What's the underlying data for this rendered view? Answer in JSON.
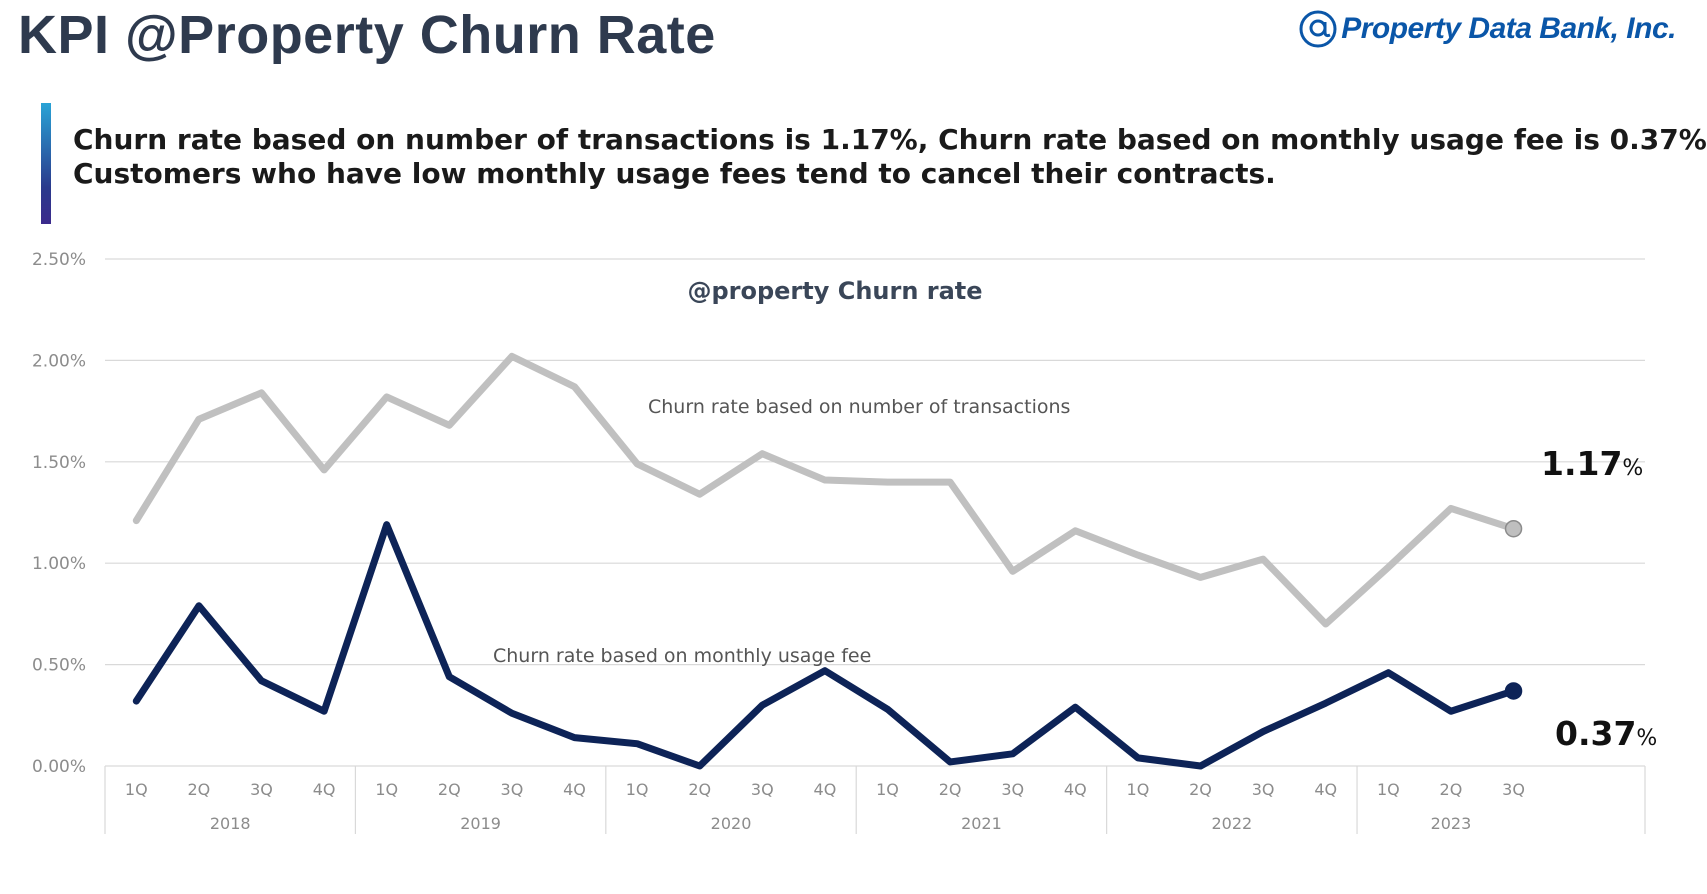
{
  "header": {
    "title": "KPI @Property Churn Rate",
    "logo_text": "Property Data Bank, Inc."
  },
  "summary": {
    "line1": "Churn rate based on number of transactions is 1.17%, Churn rate based on monthly usage fee is 0.37%",
    "line2": "Customers who have low monthly usage fees tend to cancel their contracts."
  },
  "colors": {
    "title": "#2e3a4e",
    "brand": "#0a56a8",
    "transactions_line": "#c0c0c0",
    "usage_fee_line": "#0d2357",
    "grid": "#d9d9d9",
    "axis_text": "#8c8c8c"
  },
  "chart_data": {
    "type": "line",
    "title": "@property Churn rate",
    "yticks": [
      "0.00%",
      "0.50%",
      "1.00%",
      "1.50%",
      "2.00%",
      "2.50%"
    ],
    "ylim": [
      0,
      2.5
    ],
    "grid": true,
    "x": [
      "1Q",
      "2Q",
      "3Q",
      "4Q",
      "1Q",
      "2Q",
      "3Q",
      "4Q",
      "1Q",
      "2Q",
      "3Q",
      "4Q",
      "1Q",
      "2Q",
      "3Q",
      "4Q",
      "1Q",
      "2Q",
      "3Q",
      "4Q",
      "1Q",
      "2Q",
      "3Q"
    ],
    "years": [
      "2018",
      "2019",
      "2020",
      "2021",
      "2022",
      "2023"
    ],
    "series": [
      {
        "name": "Churn rate based on number of transactions",
        "values": [
          1.21,
          1.71,
          1.84,
          1.46,
          1.82,
          1.68,
          2.02,
          1.87,
          1.49,
          1.34,
          1.54,
          1.41,
          1.4,
          1.4,
          0.96,
          1.16,
          1.04,
          0.93,
          1.02,
          0.7,
          0.98,
          1.27,
          1.17
        ],
        "end_label": "1.17",
        "end_unit": "%"
      },
      {
        "name": "Churn rate based on monthly usage fee",
        "values": [
          0.32,
          0.79,
          0.42,
          0.27,
          1.19,
          0.44,
          0.26,
          0.14,
          0.11,
          0.0,
          0.3,
          0.47,
          0.28,
          0.02,
          0.06,
          0.29,
          0.04,
          0.0,
          0.17,
          0.31,
          0.46,
          0.27,
          0.37
        ],
        "end_label": "0.37",
        "end_unit": "%"
      }
    ]
  }
}
